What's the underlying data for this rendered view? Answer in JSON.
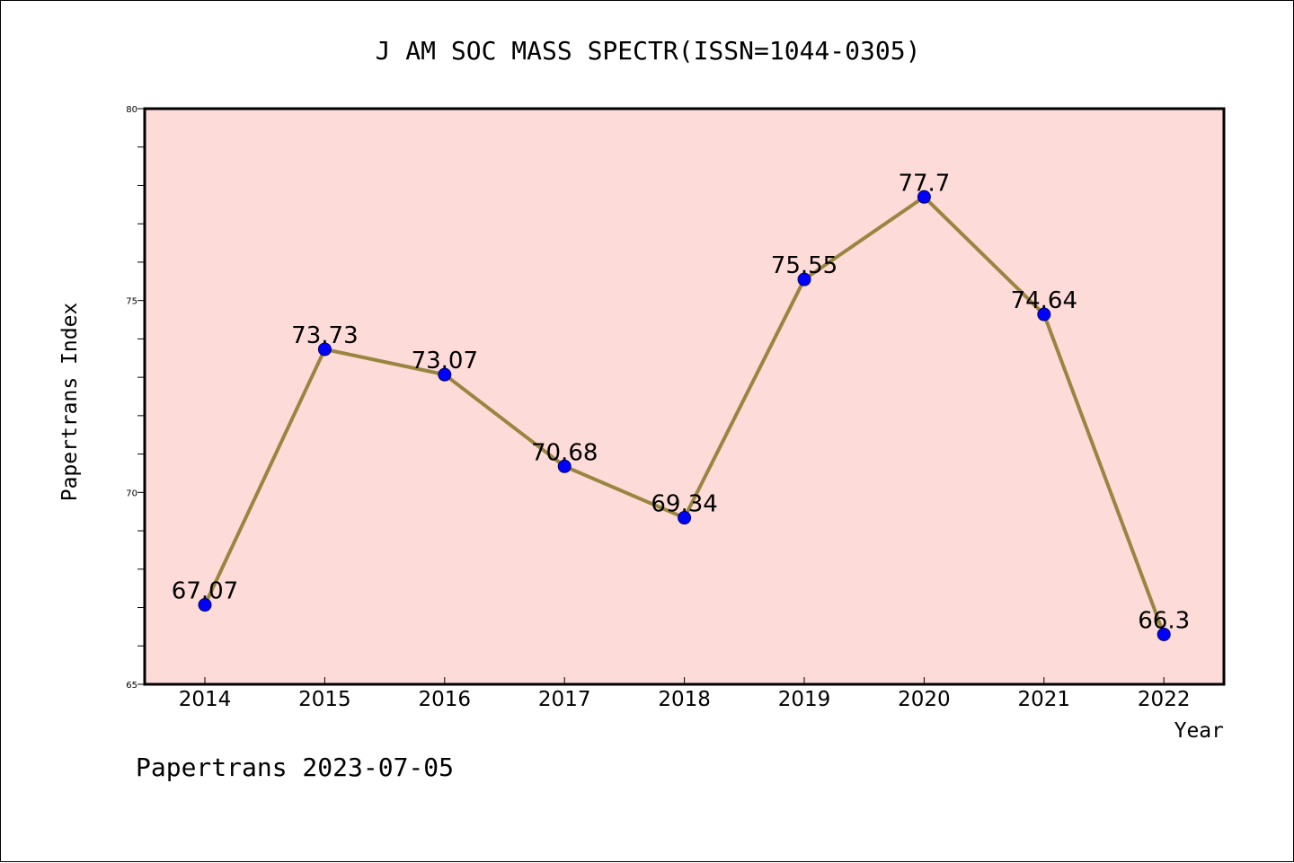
{
  "title": "J AM SOC MASS SPECTR(ISSN=1044-0305)",
  "footer": "Papertrans 2023-07-05",
  "colors": {
    "plot_background": "#fddbd8",
    "line": "#9a8540",
    "marker": "#0000ff",
    "axis": "#000000"
  },
  "chart_data": {
    "type": "line",
    "title": "J AM SOC MASS SPECTR(ISSN=1044-0305)",
    "xlabel": "Year",
    "ylabel": "Papertrans Index",
    "categories": [
      "2014",
      "2015",
      "2016",
      "2017",
      "2018",
      "2019",
      "2020",
      "2021",
      "2022"
    ],
    "series": [
      {
        "values": [
          67.07,
          73.73,
          73.07,
          70.68,
          69.34,
          75.55,
          77.7,
          74.64,
          66.3
        ],
        "labels": [
          "67.07",
          "73.73",
          "73.07",
          "70.68",
          "69.34",
          "75.55",
          "77.7",
          "74.64",
          "66.3"
        ]
      }
    ],
    "ylim": [
      65,
      80
    ],
    "yticks": [
      "65",
      "70",
      "75",
      "80"
    ],
    "minor_tick_step": 1,
    "grid": false,
    "legend": "none",
    "markers": "circle"
  }
}
